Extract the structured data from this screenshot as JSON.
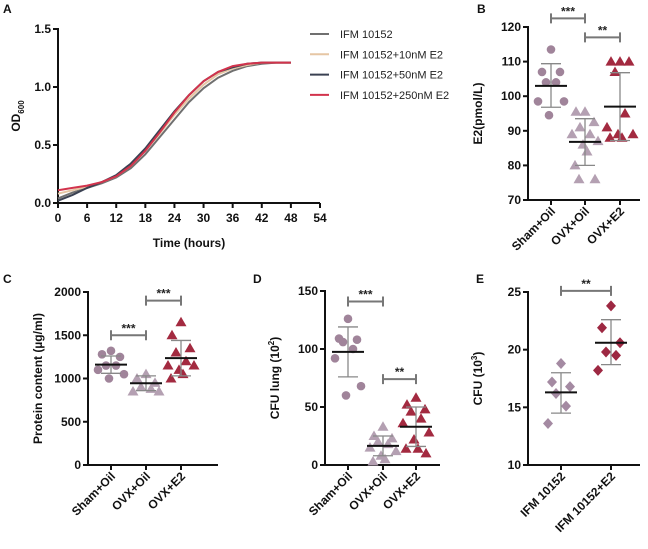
{
  "chart_data": [
    {
      "panel": "A",
      "type": "line",
      "xlabel": "Time (hours)",
      "ylabel": {
        "pre": "OD",
        "sub": "600"
      },
      "xlim": [
        0,
        54
      ],
      "ylim": [
        0,
        1.5
      ],
      "xticks": [
        "0",
        "6",
        "12",
        "18",
        "24",
        "30",
        "36",
        "42",
        "48",
        "54"
      ],
      "yticks": [
        "0.0",
        "0.5",
        "1.0",
        "1.5"
      ],
      "x": [
        0,
        3,
        6,
        9,
        12,
        15,
        18,
        21,
        24,
        27,
        30,
        33,
        36,
        39,
        42,
        45,
        48
      ],
      "legend_position": "top-right",
      "series": [
        {
          "name": "IFM 10152",
          "color": "#707070",
          "values": [
            0.04,
            0.09,
            0.13,
            0.17,
            0.22,
            0.3,
            0.42,
            0.57,
            0.72,
            0.87,
            0.99,
            1.08,
            1.14,
            1.18,
            1.2,
            1.21,
            1.21
          ]
        },
        {
          "name": "IFM 10152+10nM E2",
          "color": "#e6c6a4",
          "values": [
            0.08,
            0.11,
            0.14,
            0.18,
            0.23,
            0.32,
            0.45,
            0.6,
            0.76,
            0.9,
            1.02,
            1.11,
            1.16,
            1.19,
            1.21,
            1.21,
            1.21
          ]
        },
        {
          "name": "IFM 10152+50nM E2",
          "color": "#3a4152",
          "values": [
            0.02,
            0.07,
            0.13,
            0.18,
            0.24,
            0.34,
            0.47,
            0.63,
            0.79,
            0.93,
            1.05,
            1.13,
            1.17,
            1.2,
            1.21,
            1.21,
            1.21
          ]
        },
        {
          "name": "IFM 10152+250nM E2",
          "color": "#d2334c",
          "values": [
            0.11,
            0.13,
            0.15,
            0.18,
            0.23,
            0.32,
            0.45,
            0.61,
            0.78,
            0.93,
            1.05,
            1.13,
            1.18,
            1.2,
            1.21,
            1.21,
            1.21
          ]
        }
      ]
    },
    {
      "panel": "B",
      "type": "scatter",
      "ylabel": {
        "pre": "E2(pmol/L)"
      },
      "ylim": [
        70,
        120
      ],
      "yticks": [
        "70",
        "80",
        "90",
        "100",
        "110",
        "120"
      ],
      "categories": [
        "Sham+Oil",
        "OVX+Oil",
        "OVX+E2"
      ],
      "groups": [
        {
          "name": "Sham+Oil",
          "marker": "circle",
          "color": "#a0849a",
          "values": [
            113.5,
            107,
            107,
            104,
            104,
            98.5,
            98.5,
            94.5
          ],
          "mean": 103,
          "sd": [
            96.8,
            109.4
          ]
        },
        {
          "name": "OVX+Oil",
          "marker": "triangle",
          "color": "#b4a0b2",
          "values": [
            95.5,
            95.5,
            92.5,
            91,
            89,
            89,
            87,
            86,
            84,
            80,
            76,
            76
          ],
          "mean": 86.8,
          "sd": [
            80,
            93.5
          ]
        },
        {
          "name": "OVX+E2",
          "marker": "triangle",
          "color": "#a32a40",
          "values": [
            110,
            110,
            110,
            107,
            95,
            91,
            89,
            89,
            88,
            88
          ],
          "mean": 97,
          "sd": [
            87.2,
            106.8
          ]
        }
      ],
      "significance": [
        {
          "from": 0,
          "to": 1,
          "label": "***",
          "level": 122.5
        },
        {
          "from": 1,
          "to": 2,
          "label": "**",
          "level": 117
        }
      ]
    },
    {
      "panel": "C",
      "type": "scatter",
      "ylabel": {
        "pre": "Protein content (µg/ml)"
      },
      "ylim": [
        0,
        2000
      ],
      "yticks": [
        "0",
        "500",
        "1000",
        "1500",
        "2000"
      ],
      "categories": [
        "Sham+Oil",
        "OVX+Oil",
        "OVX+E2"
      ],
      "groups": [
        {
          "name": "Sham+Oil",
          "marker": "circle",
          "color": "#a0849a",
          "values": [
            1320,
            1280,
            1250,
            1150,
            1150,
            1100,
            1050,
            1000
          ],
          "mean": 1160,
          "sd": [
            1060,
            1260
          ]
        },
        {
          "name": "OVX+Oil",
          "marker": "triangle",
          "color": "#b4a0b2",
          "values": [
            1050,
            1000,
            950,
            900,
            880,
            850,
            850
          ],
          "mean": 945,
          "sd": [
            860,
            1030
          ]
        },
        {
          "name": "OVX+E2",
          "marker": "triangle",
          "color": "#a32a40",
          "values": [
            1650,
            1500,
            1350,
            1300,
            1200,
            1150,
            1150,
            1100,
            1050,
            1000
          ],
          "mean": 1235,
          "sd": [
            1030,
            1440
          ]
        }
      ],
      "significance": [
        {
          "from": 0,
          "to": 1,
          "label": "***",
          "level": 1500
        },
        {
          "from": 1,
          "to": 2,
          "label": "***",
          "level": 1900
        }
      ]
    },
    {
      "panel": "D",
      "type": "scatter",
      "ylabel": {
        "pre": "CFU lung (10",
        "sup": "2",
        "post": ")"
      },
      "ylim": [
        0,
        150
      ],
      "yticks": [
        "0",
        "50",
        "100",
        "150"
      ],
      "categories": [
        "Sham+Oil",
        "OVX+Oil",
        "OVX+E2"
      ],
      "groups": [
        {
          "name": "Sham+Oil",
          "marker": "circle",
          "color": "#a0849a",
          "values": [
            126,
            109,
            108,
            106,
            100,
            92,
            68,
            60
          ],
          "mean": 97.5,
          "sd": [
            76,
            119
          ]
        },
        {
          "name": "OVX+Oil",
          "marker": "triangle",
          "color": "#b4a0b2",
          "values": [
            33,
            25,
            23,
            20,
            18,
            15,
            12,
            8,
            5,
            3
          ],
          "mean": 16.5,
          "sd": [
            8,
            25
          ]
        },
        {
          "name": "OVX+E2",
          "marker": "triangle",
          "color": "#a32a40",
          "values": [
            58,
            52,
            48,
            46,
            40,
            36,
            28,
            22,
            14,
            14,
            10
          ],
          "mean": 33,
          "sd": [
            16,
            50
          ]
        }
      ],
      "significance": [
        {
          "from": 0,
          "to": 1,
          "label": "***",
          "level": 141
        },
        {
          "from": 1,
          "to": 2,
          "label": "**",
          "level": 74
        }
      ]
    },
    {
      "panel": "E",
      "type": "scatter",
      "ylabel": {
        "pre": "CFU (10",
        "sup": "3",
        "post": ")"
      },
      "ylim": [
        10,
        25
      ],
      "yticks": [
        "10",
        "15",
        "20",
        "25"
      ],
      "categories": [
        "IFM 10152",
        "IFM 10152+E2"
      ],
      "groups": [
        {
          "name": "IFM 10152",
          "marker": "diamond",
          "color": "#a48aa2",
          "values": [
            18.8,
            17.2,
            16.8,
            16.2,
            15.1,
            13.6
          ],
          "mean": 16.3,
          "sd": [
            14.5,
            18.0
          ]
        },
        {
          "name": "IFM 10152+E2",
          "marker": "diamond",
          "color": "#9d2842",
          "values": [
            23.8,
            21.9,
            20.6,
            19.8,
            19.5,
            18.2
          ],
          "mean": 20.6,
          "sd": [
            18.7,
            22.6
          ]
        }
      ],
      "significance": [
        {
          "from": 0,
          "to": 1,
          "label": "**",
          "level": 25.1
        }
      ]
    }
  ]
}
